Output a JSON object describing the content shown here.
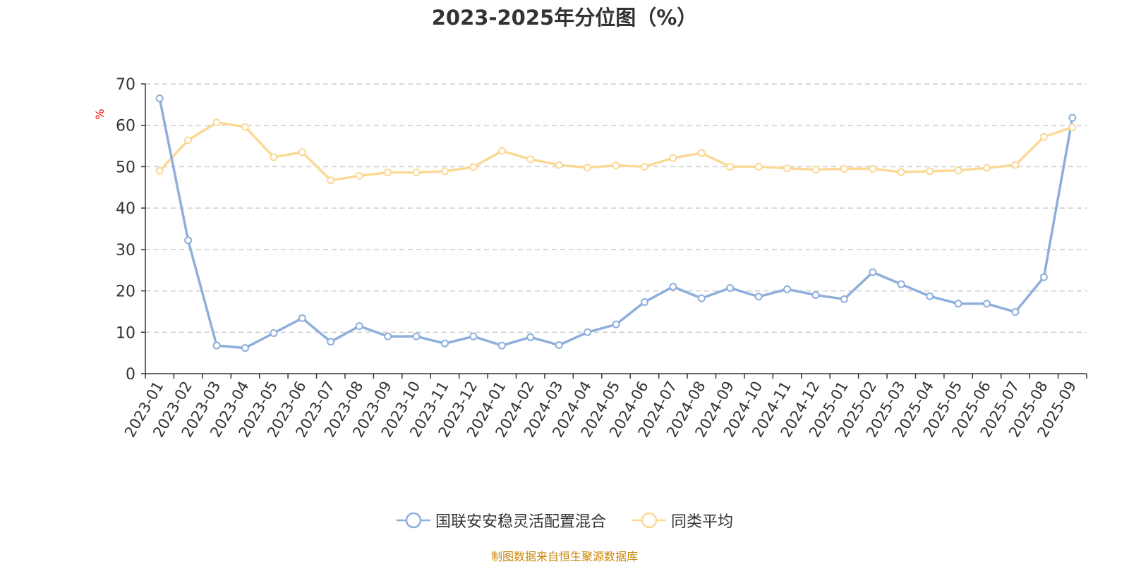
{
  "chart_data": {
    "type": "line",
    "title": "2023-2025年分位图（%）",
    "ylabel": "%",
    "xlabel": "",
    "ylim": [
      0,
      70
    ],
    "yticks": [
      0,
      10,
      20,
      30,
      40,
      50,
      60,
      70
    ],
    "grid": true,
    "legend_position": "bottom",
    "categories": [
      "2023-01",
      "2023-02",
      "2023-03",
      "2023-04",
      "2023-05",
      "2023-06",
      "2023-07",
      "2023-08",
      "2023-09",
      "2023-10",
      "2023-11",
      "2023-12",
      "2024-01",
      "2024-02",
      "2024-03",
      "2024-04",
      "2024-05",
      "2024-06",
      "2024-07",
      "2024-08",
      "2024-09",
      "2024-10",
      "2024-11",
      "2024-12",
      "2025-01",
      "2025-02",
      "2025-03",
      "2025-04",
      "2025-05",
      "2025-06",
      "2025-07",
      "2025-08",
      "2025-09"
    ],
    "series": [
      {
        "name": "国联安安稳灵活配置混合",
        "color": "#8eaedb",
        "values": [
          66.5,
          32.2,
          6.8,
          6.2,
          9.8,
          13.4,
          7.7,
          11.5,
          9.0,
          9.0,
          7.3,
          9.0,
          6.8,
          8.8,
          6.9,
          10.0,
          11.9,
          17.3,
          21.0,
          18.2,
          20.7,
          18.6,
          20.4,
          19.0,
          18.0,
          24.5,
          21.6,
          18.7,
          16.9,
          16.9,
          14.9,
          23.3,
          61.8
        ]
      },
      {
        "name": "同类平均",
        "color": "#fbd995",
        "values": [
          49.0,
          56.4,
          60.7,
          59.6,
          52.3,
          53.5,
          46.7,
          47.8,
          48.6,
          48.6,
          48.9,
          49.9,
          53.8,
          51.8,
          50.4,
          49.8,
          50.3,
          50.0,
          52.1,
          53.3,
          50.0,
          50.0,
          49.6,
          49.3,
          49.5,
          49.5,
          48.7,
          48.9,
          49.1,
          49.7,
          50.4,
          57.2,
          59.5
        ]
      }
    ]
  },
  "footer": {
    "source": "制图数据来自恒生聚源数据库"
  }
}
